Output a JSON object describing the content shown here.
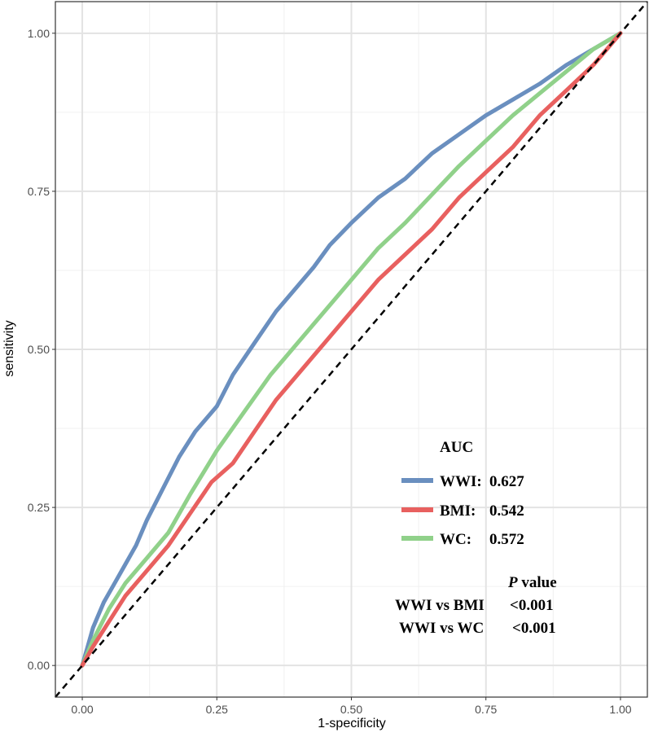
{
  "chart_data": {
    "type": "line",
    "xlabel": "1-specificity",
    "ylabel": "sensitivity",
    "xlim": [
      -0.05,
      1.05
    ],
    "ylim": [
      -0.05,
      1.05
    ],
    "xticks": [
      0.0,
      0.25,
      0.5,
      0.75,
      1.0
    ],
    "yticks": [
      0.0,
      0.25,
      0.5,
      0.75,
      1.0
    ],
    "xtick_labels": [
      "0.00",
      "0.25",
      "0.50",
      "0.75",
      "1.00"
    ],
    "ytick_labels": [
      "0.00",
      "0.25",
      "0.50",
      "0.75",
      "1.00"
    ],
    "grid": true,
    "reference_line": {
      "x": [
        0,
        1
      ],
      "y": [
        0,
        1
      ],
      "style": "dashed",
      "color": "#000000"
    },
    "series": [
      {
        "name": "WWI",
        "color": "#6a8fbf",
        "x": [
          0,
          0.01,
          0.02,
          0.04,
          0.06,
          0.08,
          0.1,
          0.12,
          0.15,
          0.18,
          0.21,
          0.25,
          0.28,
          0.32,
          0.36,
          0.4,
          0.43,
          0.46,
          0.5,
          0.55,
          0.6,
          0.65,
          0.7,
          0.75,
          0.8,
          0.85,
          0.9,
          0.95,
          1.0
        ],
        "y": [
          0,
          0.03,
          0.06,
          0.1,
          0.13,
          0.16,
          0.19,
          0.23,
          0.28,
          0.33,
          0.37,
          0.41,
          0.46,
          0.51,
          0.56,
          0.6,
          0.63,
          0.665,
          0.7,
          0.74,
          0.77,
          0.81,
          0.84,
          0.87,
          0.895,
          0.92,
          0.95,
          0.975,
          1.0
        ]
      },
      {
        "name": "BMI",
        "color": "#e8605f",
        "x": [
          0,
          0.02,
          0.05,
          0.08,
          0.12,
          0.16,
          0.2,
          0.24,
          0.28,
          0.32,
          0.36,
          0.4,
          0.45,
          0.5,
          0.55,
          0.6,
          0.65,
          0.7,
          0.75,
          0.8,
          0.85,
          0.9,
          0.95,
          1.0
        ],
        "y": [
          0,
          0.03,
          0.07,
          0.11,
          0.15,
          0.19,
          0.24,
          0.29,
          0.32,
          0.37,
          0.42,
          0.46,
          0.51,
          0.56,
          0.61,
          0.65,
          0.69,
          0.74,
          0.78,
          0.82,
          0.87,
          0.91,
          0.95,
          1.0
        ]
      },
      {
        "name": "WC",
        "color": "#90d18a",
        "x": [
          0,
          0.02,
          0.05,
          0.08,
          0.12,
          0.16,
          0.2,
          0.25,
          0.3,
          0.35,
          0.4,
          0.45,
          0.5,
          0.55,
          0.6,
          0.65,
          0.7,
          0.75,
          0.8,
          0.85,
          0.9,
          0.95,
          1.0
        ],
        "y": [
          0,
          0.04,
          0.09,
          0.13,
          0.17,
          0.21,
          0.27,
          0.34,
          0.4,
          0.46,
          0.51,
          0.56,
          0.61,
          0.66,
          0.7,
          0.745,
          0.79,
          0.83,
          0.87,
          0.905,
          0.94,
          0.975,
          1.0
        ]
      }
    ]
  },
  "legend": {
    "title": "AUC",
    "items": [
      {
        "name": "WWI",
        "label": "WWI:",
        "value": "0.627",
        "color": "#6a8fbf"
      },
      {
        "name": "BMI",
        "label": "BMI:",
        "value": "0.542",
        "color": "#e8605f"
      },
      {
        "name": "WC",
        "label": "WC:",
        "value": "0.572",
        "color": "#90d18a"
      }
    ]
  },
  "pvalue": {
    "header_p": "P",
    "header_rest": " value",
    "rows": [
      {
        "label": "WWI vs BMI",
        "value": "<0.001"
      },
      {
        "label": "WWI vs WC",
        "value": "<0.001"
      }
    ]
  }
}
